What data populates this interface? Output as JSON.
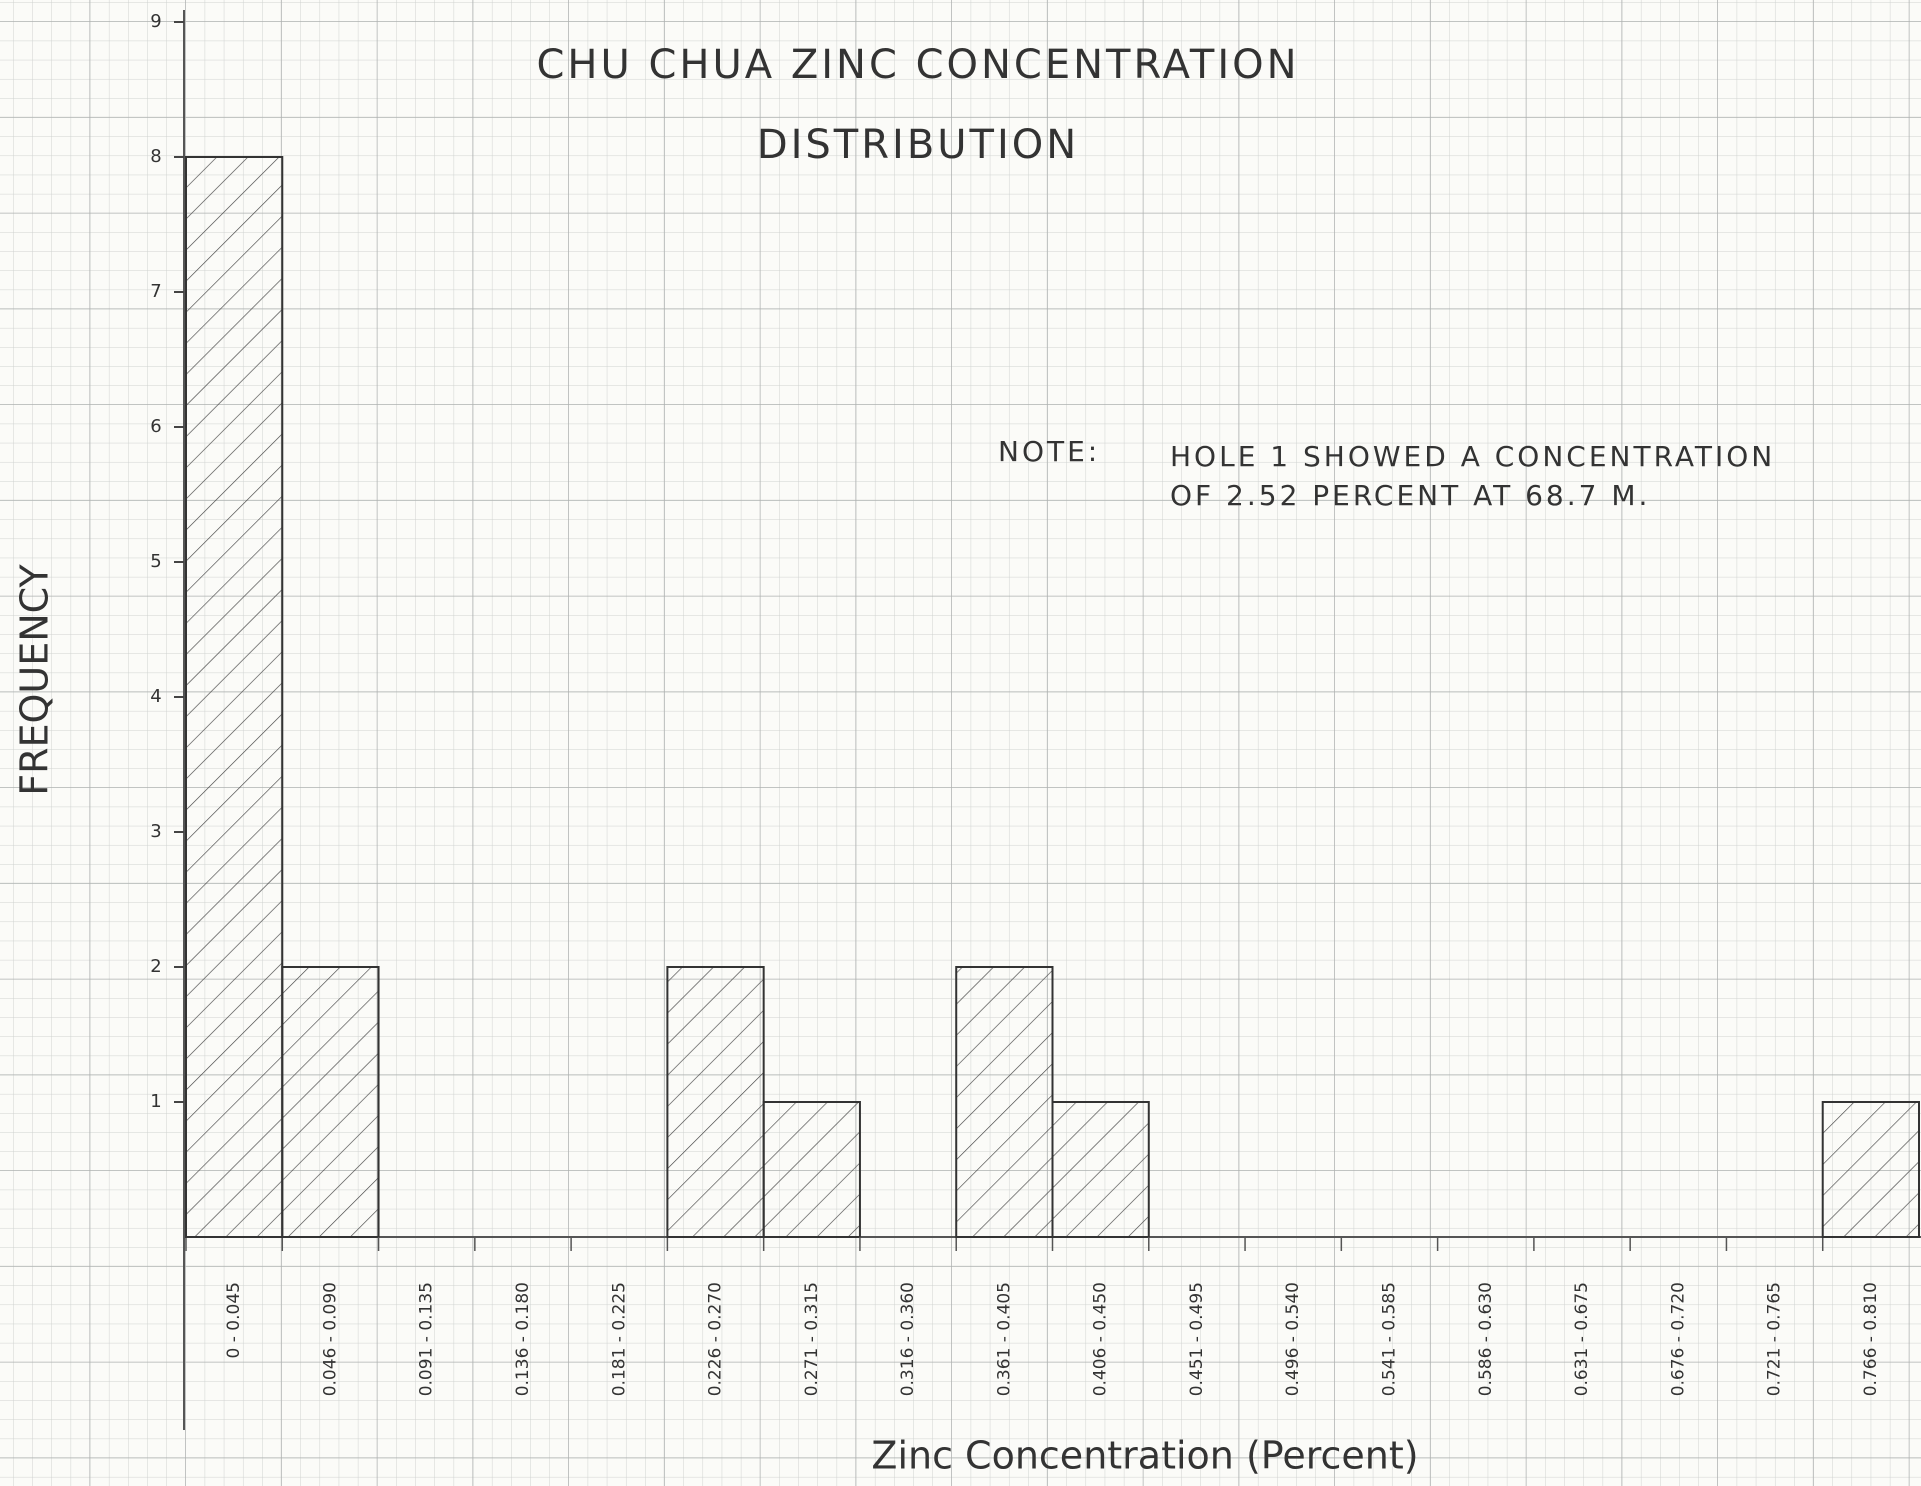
{
  "chart_data": {
    "type": "bar",
    "title": "CHU CHUA ZINC CONCENTRATION",
    "subtitle": "DISTRIBUTION",
    "x_label": "Zinc Concentration (Percent)",
    "y_label": "FREQUENCY",
    "annotations": [
      "NOTE:",
      "HOLE 1 SHOWED A CONCENTRATION",
      "OF 2.52 PERCENT AT 68.7 M."
    ],
    "categories": [
      "0 - 0.045",
      "0.046 - 0.090",
      "0.091 - 0.135",
      "0.136 - 0.180",
      "0.181 - 0.225",
      "0.226 - 0.270",
      "0.271 - 0.315",
      "0.316 - 0.360",
      "0.361 - 0.405",
      "0.406 - 0.450",
      "0.451 - 0.495",
      "0.496 - 0.540",
      "0.541 - 0.585",
      "0.586 - 0.630",
      "0.631 - 0.675",
      "0.676 - 0.720",
      "0.721 - 0.765",
      "0.766 - 0.810"
    ],
    "values": [
      8,
      2,
      0,
      0,
      0,
      2,
      1,
      0,
      2,
      1,
      0,
      0,
      0,
      0,
      0,
      0,
      0,
      1
    ],
    "color": "#333333",
    "ylim": [
      0,
      9
    ],
    "yticks": [
      1,
      2,
      3,
      4,
      5,
      6,
      7,
      8,
      9
    ]
  }
}
